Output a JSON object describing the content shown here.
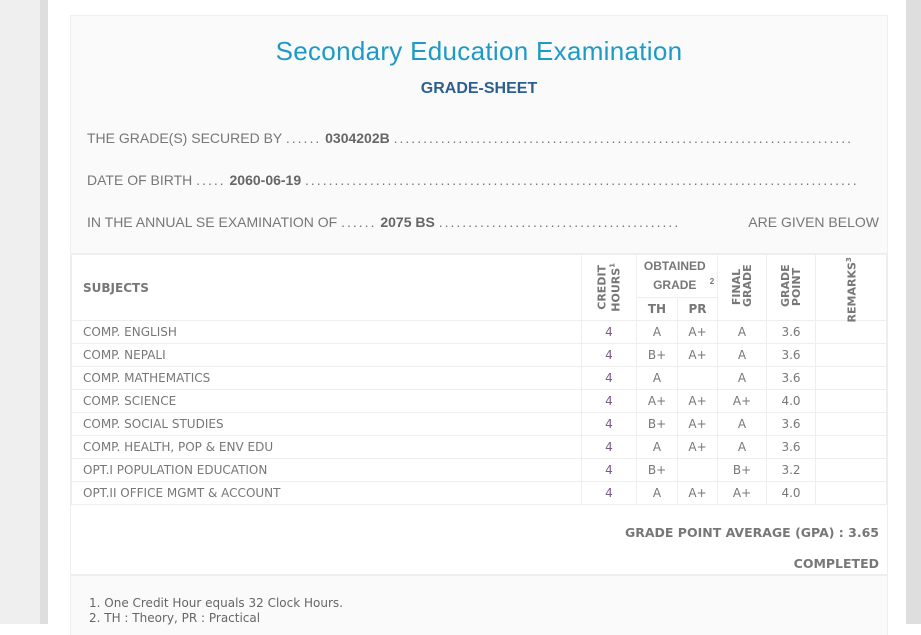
{
  "header": {
    "title": "Secondary Education Examination",
    "subtitle": "GRADE-SHEET",
    "secured_label": "THE GRADE(S) SECURED BY",
    "secured_value": "0304202B",
    "dob_label": "DATE OF BIRTH",
    "dob_value": "2060-06-19",
    "exam_label": "IN THE ANNUAL SE EXAMINATION OF",
    "exam_value": "2075 BS",
    "exam_suffix": "ARE GIVEN BELOW"
  },
  "table": {
    "headers": {
      "subjects": "SUBJECTS",
      "credit": "CREDIT HOURS",
      "credit_sup": "1",
      "obtained": "OBTAINED GRADE",
      "obtained_sup": "2",
      "th": "TH",
      "pr": "PR",
      "final": "FINAL GRADE",
      "grade_point": "GRADE POINT",
      "remarks": "REMARKS",
      "remarks_sup": "3"
    },
    "rows": [
      {
        "subject": "COMP. ENGLISH",
        "credit": "4",
        "th": "A",
        "pr": "A+",
        "final": "A",
        "gp": "3.6",
        "remarks": ""
      },
      {
        "subject": "COMP. NEPALI",
        "credit": "4",
        "th": "B+",
        "pr": "A+",
        "final": "A",
        "gp": "3.6",
        "remarks": ""
      },
      {
        "subject": "COMP. MATHEMATICS",
        "credit": "4",
        "th": "A",
        "pr": "",
        "final": "A",
        "gp": "3.6",
        "remarks": ""
      },
      {
        "subject": "COMP. SCIENCE",
        "credit": "4",
        "th": "A+",
        "pr": "A+",
        "final": "A+",
        "gp": "4.0",
        "remarks": ""
      },
      {
        "subject": "COMP. SOCIAL STUDIES",
        "credit": "4",
        "th": "B+",
        "pr": "A+",
        "final": "A",
        "gp": "3.6",
        "remarks": ""
      },
      {
        "subject": "COMP. HEALTH, POP & ENV EDU",
        "credit": "4",
        "th": "A",
        "pr": "A+",
        "final": "A",
        "gp": "3.6",
        "remarks": ""
      },
      {
        "subject": "OPT.I POPULATION EDUCATION",
        "credit": "4",
        "th": "B+",
        "pr": "",
        "final": "B+",
        "gp": "3.2",
        "remarks": ""
      },
      {
        "subject": "OPT.II OFFICE MGMT & ACCOUNT",
        "credit": "4",
        "th": "A",
        "pr": "A+",
        "final": "A+",
        "gp": "4.0",
        "remarks": ""
      }
    ]
  },
  "summary": {
    "gpa": "GRADE POINT AVERAGE (GPA) : 3.65",
    "status": "COMPLETED"
  },
  "notes": [
    "1. One Credit Hour equals 32 Clock Hours.",
    "2. TH : Theory, PR : Practical"
  ]
}
